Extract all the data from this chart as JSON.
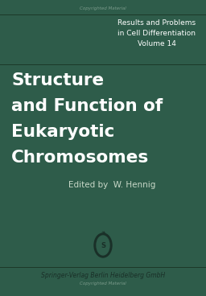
{
  "bg_color": "#2e5c4a",
  "title_lines": [
    "Structure",
    "and Function of",
    "Eukaryotic",
    "Chromosomes"
  ],
  "title_color": "#ffffff",
  "title_fontsize": 15.5,
  "series_line1": "Results and Problems",
  "series_line2": "in Cell Differentiation",
  "series_line3": "Volume 14",
  "series_color": "#ffffff",
  "series_fontsize": 6.5,
  "editor": "Edited by  W. Hennig",
  "editor_color": "#c8d8c8",
  "editor_fontsize": 7.5,
  "publisher": "Springer-Verlag Berlin Heidelberg GmbH",
  "publisher_color": "#1a3028",
  "publisher_fontsize": 5.5,
  "line_color": "#1c3828",
  "copyright_text": "Copyrighted Material",
  "copyright_fontsize": 4.0,
  "copyright_color": "#7a9a8a",
  "logo_color": "#1a3028"
}
